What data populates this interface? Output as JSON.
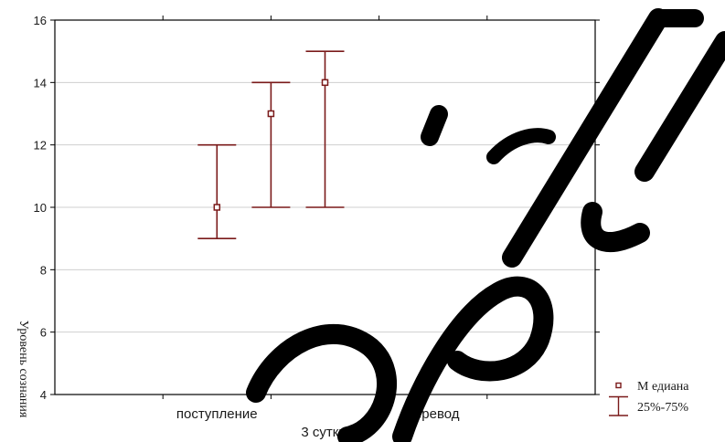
{
  "chart_data": {
    "type": "box",
    "x_title": "3 сутки",
    "y_title": "Уровень сознания",
    "categories": [
      "",
      "поступление",
      "",
      "перевод",
      ""
    ],
    "ylim": [
      4,
      16
    ],
    "yticks": [
      4,
      6,
      8,
      10,
      12,
      14,
      16
    ],
    "grid": true,
    "series_color": "#7a1a1a",
    "boxes": [
      {
        "x": 1.5,
        "median": 10,
        "q25": 9,
        "q75": 12
      },
      {
        "x": 2,
        "median": 13,
        "q25": 10,
        "q75": 14
      },
      {
        "x": 2.5,
        "median": 14,
        "q25": 10,
        "q75": 15
      }
    ],
    "legend": {
      "position": "bottom-right",
      "items": [
        {
          "marker": "square",
          "label": "М едиана"
        },
        {
          "marker": "whisker",
          "label": "25%-75%"
        }
      ]
    }
  }
}
